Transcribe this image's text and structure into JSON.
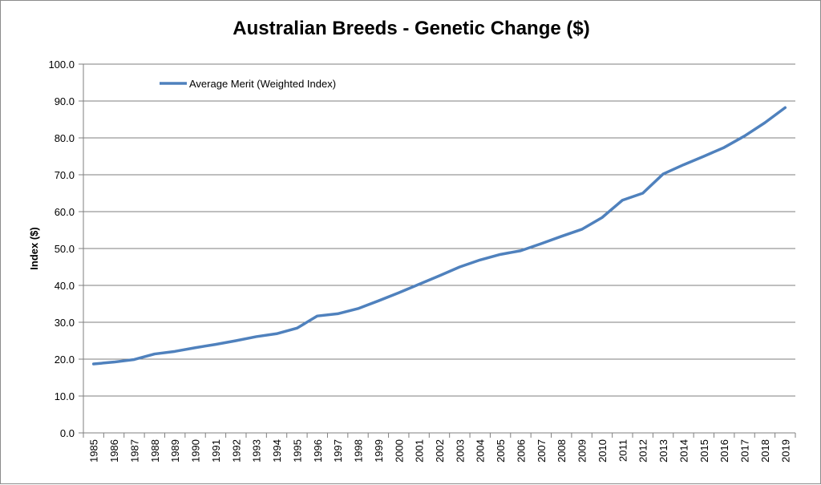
{
  "chart_data": {
    "type": "line",
    "title": "Australian Breeds - Genetic Change ($)",
    "xlabel": "",
    "ylabel": "Index ($)",
    "ylim": [
      0,
      100
    ],
    "yticks": [
      "0.0",
      "10.0",
      "20.0",
      "30.0",
      "40.0",
      "50.0",
      "60.0",
      "70.0",
      "80.0",
      "90.0",
      "100.0"
    ],
    "grid": true,
    "legend_position": "top-left",
    "x": [
      "1985",
      "1986",
      "1987",
      "1988",
      "1989",
      "1990",
      "1991",
      "1992",
      "1993",
      "1994",
      "1995",
      "1996",
      "1997",
      "1998",
      "1999",
      "2000",
      "2001",
      "2002",
      "2003",
      "2004",
      "2005",
      "2006",
      "2007",
      "2008",
      "2009",
      "2010",
      "2011",
      "2012",
      "2013",
      "2014",
      "2015",
      "2016",
      "2017",
      "2018",
      "2019"
    ],
    "series": [
      {
        "name": "Average Merit (Weighted Index)",
        "color": "#4f81bd",
        "values": [
          18.7,
          19.2,
          19.9,
          21.4,
          22.1,
          23.1,
          24.0,
          25.0,
          26.1,
          26.9,
          28.4,
          31.7,
          32.3,
          33.7,
          35.8,
          38.0,
          40.3,
          42.6,
          45.0,
          46.9,
          48.4,
          49.4,
          51.3,
          53.3,
          55.2,
          58.4,
          63.1,
          65.0,
          70.2,
          72.7,
          75.0,
          77.4,
          80.5,
          84.1,
          88.2
        ]
      }
    ],
    "colors": {
      "line": "#4f81bd",
      "grid": "#7f7f7f",
      "axis": "#7f7f7f"
    }
  }
}
